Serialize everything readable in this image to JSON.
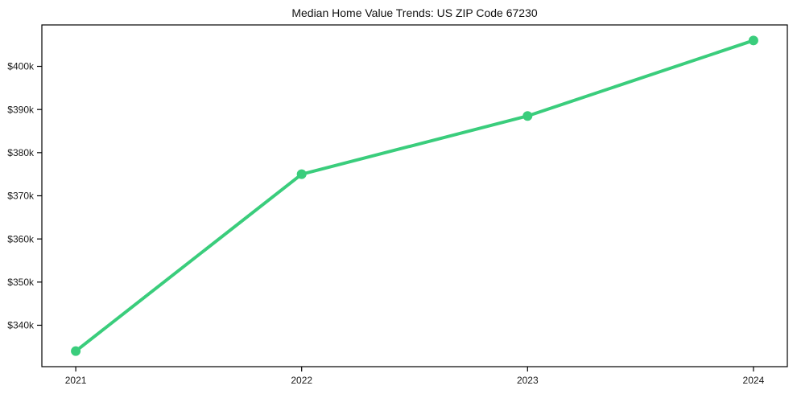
{
  "chart_data": {
    "type": "line",
    "title": "Median Home Value Trends: US ZIP Code 67230",
    "categories": [
      "2021",
      "2022",
      "2023",
      "2024"
    ],
    "x": [
      2021,
      2022,
      2023,
      2024
    ],
    "values": [
      334000,
      375000,
      388500,
      406000
    ],
    "series": [
      {
        "values": [
          334000,
          375000,
          388500,
          406000
        ]
      }
    ],
    "y_ticks": [
      {
        "value": 340000,
        "label": "$340k"
      },
      {
        "value": 350000,
        "label": "$350k"
      },
      {
        "value": 360000,
        "label": "$360k"
      },
      {
        "value": 370000,
        "label": "$370k"
      },
      {
        "value": 380000,
        "label": "$380k"
      },
      {
        "value": 390000,
        "label": "$390k"
      },
      {
        "value": 400000,
        "label": "$400k"
      }
    ],
    "xlim": [
      2020.85,
      2024.15
    ],
    "ylim": [
      330400,
      409600
    ],
    "grid": false,
    "legend": false,
    "marker": "circle",
    "colors": {
      "line": "#3acd7c",
      "marker": "#3acd7c",
      "spine": "#000000",
      "tick_label": "#1a1a1a",
      "title": "#111111",
      "background": "#ffffff"
    }
  }
}
